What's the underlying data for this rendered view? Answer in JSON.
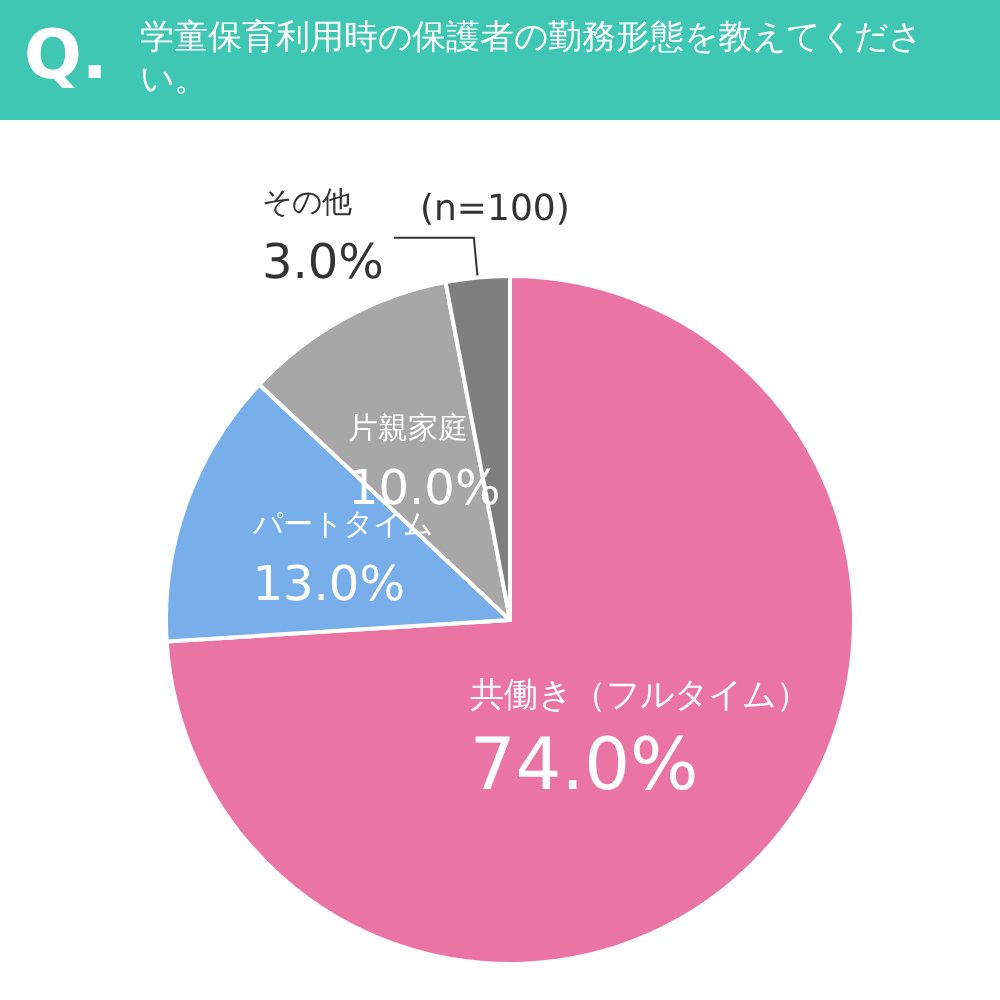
{
  "chart_data": {
    "type": "pie",
    "title": "学童保育利用時の保護者の勤務形態を教えてください。",
    "subtitle": "(n=100)",
    "annotations": [
      "Q."
    ],
    "categories": [
      "共働き（フルタイム）",
      "パートタイム",
      "片親家庭",
      "その他"
    ],
    "values": [
      74.0,
      13.0,
      10.0,
      3.0
    ],
    "value_labels": [
      "74.0%",
      "13.0%",
      "10.0%",
      "3.0%"
    ],
    "colors": [
      "#ea75a4",
      "#78aee9",
      "#a7a7a7",
      "#7f7f7f"
    ],
    "legend": false
  }
}
